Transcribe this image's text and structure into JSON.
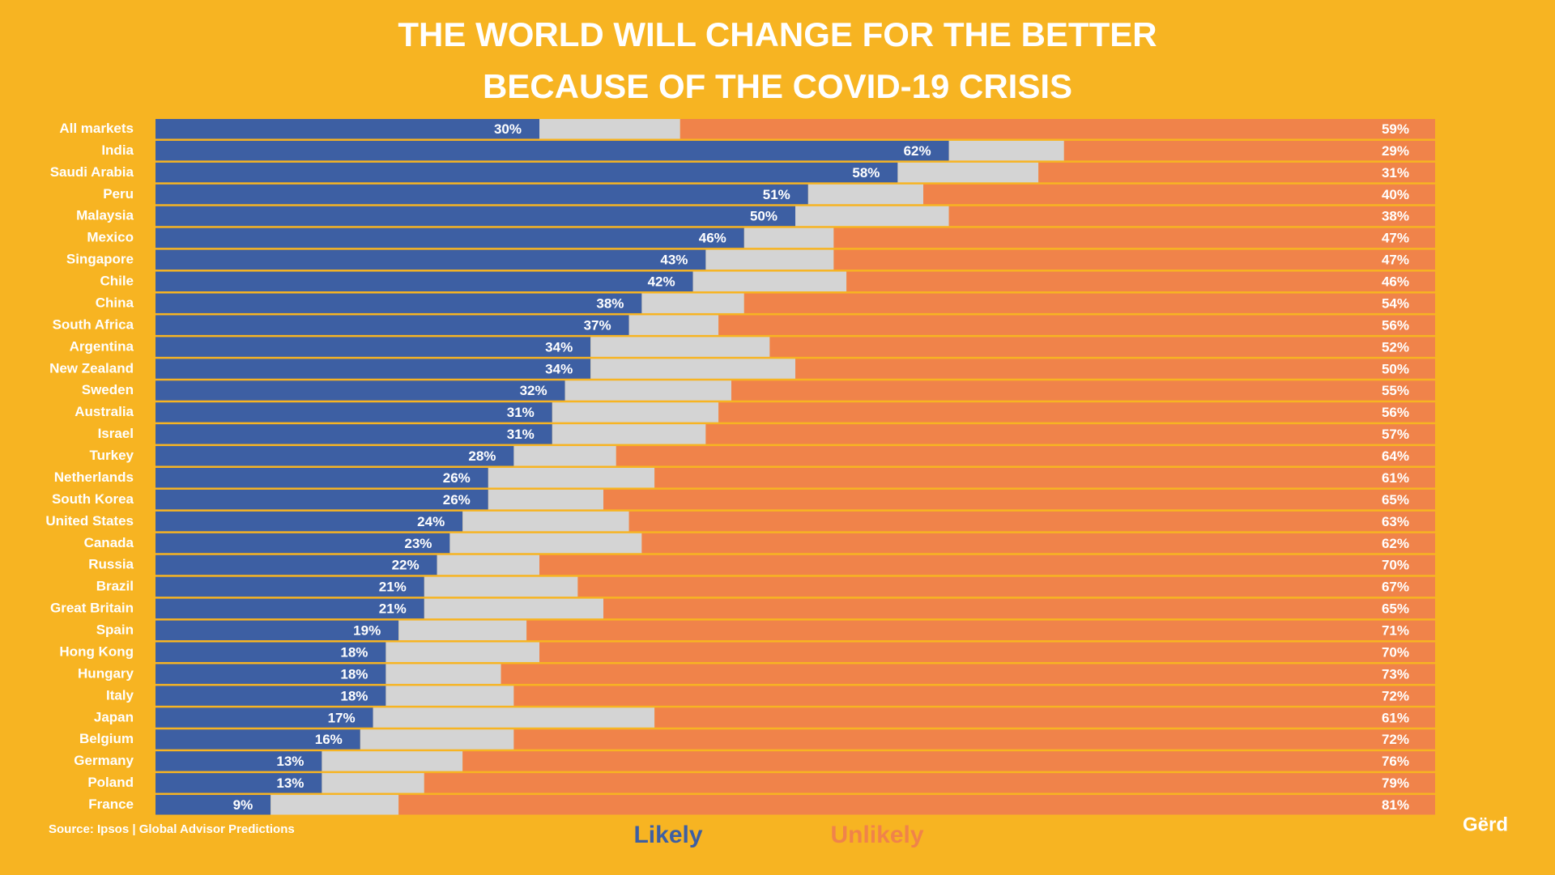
{
  "chart_data": {
    "type": "stacked-bar-horizontal",
    "title": [
      "THE WORLD WILL CHANGE FOR THE BETTER",
      "BECAUSE OF THE COVID-19 CRISIS"
    ],
    "source": "Source: Ipsos | Global Advisor Predictions",
    "logo": "Gërd",
    "xlim": [
      0,
      100
    ],
    "categories": [
      "All markets",
      "India",
      "Saudi Arabia",
      "Peru",
      "Malaysia",
      "Mexico",
      "Singapore",
      "Chile",
      "China",
      "South Africa",
      "Argentina",
      "New Zealand",
      "Sweden",
      "Australia",
      "Israel",
      "Turkey",
      "Netherlands",
      "South Korea",
      "United States",
      "Canada",
      "Russia",
      "Brazil",
      "Great Britain",
      "Spain",
      "Hong Kong",
      "Hungary",
      "Italy",
      "Japan",
      "Belgium",
      "Germany",
      "Poland",
      "France"
    ],
    "series": [
      {
        "name": "Likely",
        "color": "#3d5fa3",
        "values": [
          30,
          62,
          58,
          51,
          50,
          46,
          43,
          42,
          38,
          37,
          34,
          34,
          32,
          31,
          31,
          28,
          26,
          26,
          24,
          23,
          22,
          21,
          21,
          19,
          18,
          18,
          18,
          17,
          16,
          13,
          13,
          9
        ],
        "value_labels": [
          "30%",
          "62%",
          "58%",
          "51%",
          "50%",
          "46%",
          "43%",
          "42%",
          "38%",
          "37%",
          "34%",
          "34%",
          "32%",
          "31%",
          "31%",
          "28%",
          "26%",
          "26%",
          "24%",
          "23%",
          "22%",
          "21%",
          "21%",
          "19%",
          "18%",
          "18%",
          "18%",
          "17%",
          "16%",
          "13%",
          "13%",
          "9%"
        ]
      },
      {
        "color": "#d4d4d4",
        "values": [
          11,
          9,
          11,
          9,
          12,
          7,
          10,
          12,
          8,
          7,
          14,
          16,
          13,
          13,
          12,
          8,
          13,
          9,
          13,
          15,
          8,
          12,
          14,
          10,
          12,
          9,
          10,
          22,
          12,
          11,
          8,
          10
        ]
      },
      {
        "name": "Unlikely",
        "color": "#f0834a",
        "values": [
          59,
          29,
          31,
          40,
          38,
          47,
          47,
          46,
          54,
          56,
          52,
          50,
          55,
          56,
          57,
          64,
          61,
          65,
          63,
          62,
          70,
          67,
          65,
          71,
          70,
          73,
          72,
          61,
          72,
          76,
          79,
          81
        ],
        "value_labels": [
          "59%",
          "29%",
          "31%",
          "40%",
          "38%",
          "47%",
          "47%",
          "46%",
          "54%",
          "56%",
          "52%",
          "50%",
          "55%",
          "56%",
          "57%",
          "64%",
          "61%",
          "65%",
          "63%",
          "62%",
          "70%",
          "67%",
          "65%",
          "71%",
          "70%",
          "73%",
          "72%",
          "61%",
          "72%",
          "76%",
          "79%",
          "81%"
        ]
      }
    ]
  }
}
